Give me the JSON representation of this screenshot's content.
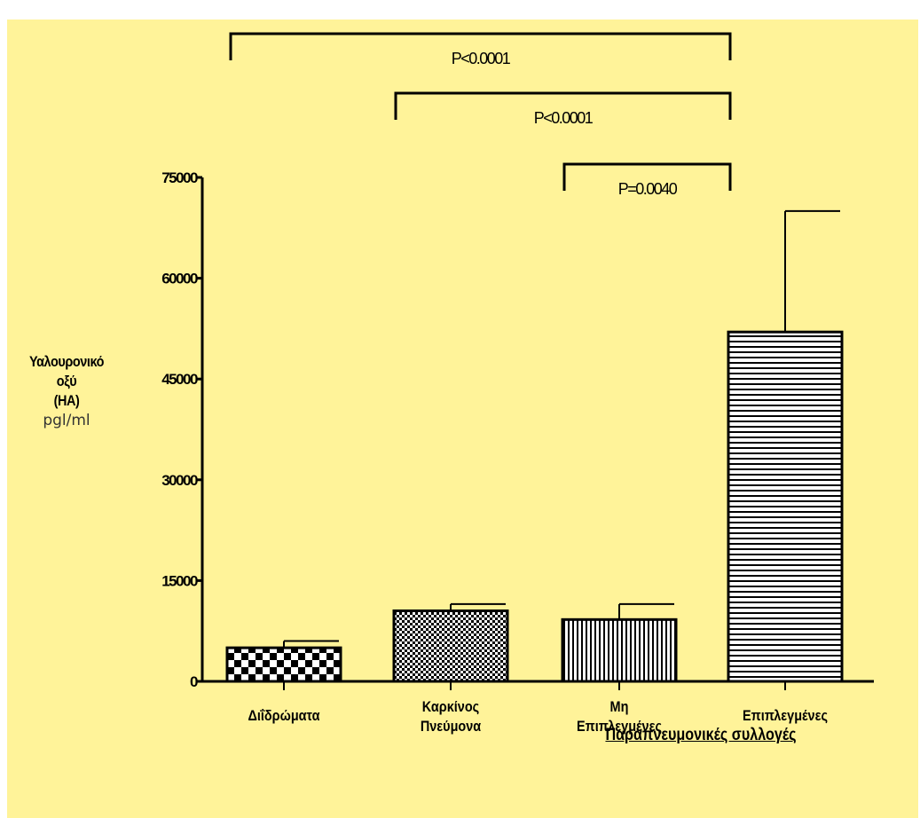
{
  "chart_data": {
    "type": "bar",
    "categories": [
      "Διΐδρώματα",
      "Καρκίνος Πνεύμονα",
      "Μη Επιπλεγμένες",
      "Επιπλεγμένες"
    ],
    "category_lines": [
      [
        "Διΐδρώματα"
      ],
      [
        "Καρκίνος",
        "Πνεύμονα"
      ],
      [
        "Μη",
        "Επιπλεγμένες"
      ],
      [
        "Επιπλεγμένες"
      ]
    ],
    "values": [
      5000,
      10500,
      9200,
      52000
    ],
    "error_upper": [
      6000,
      11500,
      11500,
      70000
    ],
    "patterns": [
      "checker",
      "fine-checker",
      "vertical-lines",
      "horizontal-lines"
    ],
    "ylim": [
      0,
      75000
    ],
    "yticks": [
      0,
      15000,
      30000,
      45000,
      60000,
      75000
    ],
    "ylabel_lines": [
      "Υαλουρονικό",
      "οξύ",
      "(HA)"
    ],
    "yunit": "pgl/ml",
    "group_label": "Παραπνευμονικές συλλογές",
    "comparisons": [
      {
        "from": 0,
        "to": 3,
        "label": "P<0.0001"
      },
      {
        "from": 1,
        "to": 3,
        "label": "P<0.0001"
      },
      {
        "from": 2,
        "to": 3,
        "label": "P=0.0040"
      }
    ],
    "background": "#FFF399",
    "grid": false
  }
}
